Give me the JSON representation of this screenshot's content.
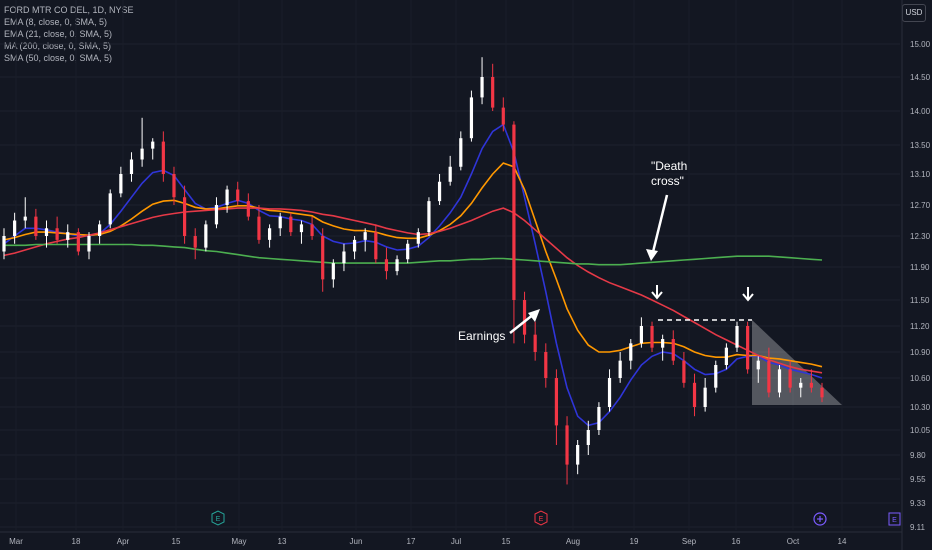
{
  "legend": {
    "symbol": "FORD MTR CO DEL, 1D, NYSE",
    "ema8": "EMA (8, close, 0, SMA, 5)",
    "ema21": "EMA (21, close, 0, SMA, 5)",
    "ma200": "MA (200, close, 0, SMA, 5)",
    "sma50": "SMA (50, close, 0, SMA, 5)"
  },
  "currency": "USD",
  "colors": {
    "background": "#131722",
    "up": "#ffffff",
    "down": "#f23645",
    "ema8": "#2f35d8",
    "ema21": "#ff9800",
    "ma200": "#4caf50",
    "sma50": "#e53947"
  },
  "event_icons": [
    "E",
    "E",
    "E"
  ],
  "annotations": {
    "earnings": "Earnings",
    "death_cross_line1": "\"Death",
    "death_cross_line2": "cross\""
  },
  "chart_data": {
    "type": "candlestick",
    "ylim": [
      9.11,
      15.25
    ],
    "yticks": [
      "15.00",
      "14.50",
      "14.00",
      "13.50",
      "13.10",
      "12.70",
      "12.30",
      "11.90",
      "11.50",
      "11.20",
      "10.90",
      "10.60",
      "10.30",
      "10.05",
      "9.80",
      "9.55",
      "9.33",
      "9.11"
    ],
    "xticks": [
      "Mar",
      "18",
      "Apr",
      "15",
      "May",
      "13",
      "Jun",
      "17",
      "Jul",
      "15",
      "Aug",
      "19",
      "Sep",
      "16",
      "Oct",
      "14"
    ],
    "candles": [
      [
        12.1,
        12.4,
        12.0,
        12.3
      ],
      [
        12.3,
        12.6,
        12.2,
        12.5
      ],
      [
        12.5,
        12.8,
        12.4,
        12.55
      ],
      [
        12.55,
        12.65,
        12.25,
        12.3
      ],
      [
        12.3,
        12.5,
        12.15,
        12.4
      ],
      [
        12.4,
        12.55,
        12.2,
        12.25
      ],
      [
        12.25,
        12.45,
        12.15,
        12.35
      ],
      [
        12.35,
        12.4,
        12.05,
        12.1
      ],
      [
        12.1,
        12.35,
        12.0,
        12.3
      ],
      [
        12.3,
        12.5,
        12.2,
        12.45
      ],
      [
        12.45,
        12.9,
        12.4,
        12.85
      ],
      [
        12.85,
        13.2,
        12.8,
        13.1
      ],
      [
        13.1,
        13.4,
        13.0,
        13.3
      ],
      [
        13.3,
        13.9,
        13.2,
        13.45
      ],
      [
        13.45,
        13.6,
        13.3,
        13.55
      ],
      [
        13.55,
        13.7,
        13.0,
        13.1
      ],
      [
        13.1,
        13.2,
        12.7,
        12.8
      ],
      [
        12.8,
        12.95,
        12.2,
        12.3
      ],
      [
        12.3,
        12.4,
        12.0,
        12.15
      ],
      [
        12.15,
        12.5,
        12.1,
        12.45
      ],
      [
        12.45,
        12.8,
        12.4,
        12.7
      ],
      [
        12.7,
        12.95,
        12.6,
        12.9
      ],
      [
        12.9,
        13.0,
        12.7,
        12.75
      ],
      [
        12.75,
        12.85,
        12.5,
        12.55
      ],
      [
        12.55,
        12.7,
        12.2,
        12.25
      ],
      [
        12.25,
        12.45,
        12.15,
        12.4
      ],
      [
        12.4,
        12.6,
        12.3,
        12.55
      ],
      [
        12.55,
        12.6,
        12.3,
        12.35
      ],
      [
        12.35,
        12.5,
        12.2,
        12.45
      ],
      [
        12.45,
        12.55,
        12.25,
        12.3
      ],
      [
        12.3,
        12.4,
        11.6,
        11.75
      ],
      [
        11.75,
        12.0,
        11.65,
        11.95
      ],
      [
        11.95,
        12.2,
        11.85,
        12.1
      ],
      [
        12.1,
        12.3,
        12.0,
        12.25
      ],
      [
        12.25,
        12.4,
        12.1,
        12.35
      ],
      [
        12.35,
        12.45,
        11.95,
        12.0
      ],
      [
        12.0,
        12.15,
        11.75,
        11.85
      ],
      [
        11.85,
        12.05,
        11.8,
        12.0
      ],
      [
        12.0,
        12.25,
        11.95,
        12.2
      ],
      [
        12.2,
        12.4,
        12.15,
        12.35
      ],
      [
        12.35,
        12.8,
        12.3,
        12.75
      ],
      [
        12.75,
        13.1,
        12.7,
        13.0
      ],
      [
        13.0,
        13.35,
        12.95,
        13.2
      ],
      [
        13.2,
        13.7,
        13.15,
        13.6
      ],
      [
        13.6,
        14.3,
        13.55,
        14.2
      ],
      [
        14.2,
        14.8,
        14.1,
        14.5
      ],
      [
        14.5,
        14.7,
        14.0,
        14.05
      ],
      [
        14.05,
        14.2,
        13.7,
        13.8
      ],
      [
        13.8,
        13.85,
        11.0,
        11.5
      ],
      [
        11.5,
        11.6,
        11.0,
        11.1
      ],
      [
        11.1,
        11.25,
        10.8,
        10.9
      ],
      [
        10.9,
        11.0,
        10.5,
        10.6
      ],
      [
        10.6,
        10.7,
        9.9,
        10.1
      ],
      [
        10.1,
        10.2,
        9.5,
        9.7
      ],
      [
        9.7,
        9.95,
        9.6,
        9.9
      ],
      [
        9.9,
        10.15,
        9.8,
        10.05
      ],
      [
        10.05,
        10.35,
        10.0,
        10.3
      ],
      [
        10.3,
        10.7,
        10.25,
        10.6
      ],
      [
        10.6,
        10.9,
        10.55,
        10.8
      ],
      [
        10.8,
        11.05,
        10.7,
        11.0
      ],
      [
        11.0,
        11.3,
        10.95,
        11.2
      ],
      [
        11.2,
        11.25,
        10.9,
        10.95
      ],
      [
        10.95,
        11.1,
        10.8,
        11.05
      ],
      [
        11.05,
        11.15,
        10.75,
        10.8
      ],
      [
        10.8,
        10.9,
        10.5,
        10.55
      ],
      [
        10.55,
        10.65,
        10.2,
        10.3
      ],
      [
        10.3,
        10.6,
        10.25,
        10.5
      ],
      [
        10.5,
        10.8,
        10.45,
        10.75
      ],
      [
        10.75,
        11.0,
        10.7,
        10.95
      ],
      [
        10.95,
        11.25,
        10.9,
        11.2
      ],
      [
        11.2,
        11.25,
        10.65,
        10.7
      ],
      [
        10.7,
        10.85,
        10.55,
        10.8
      ],
      [
        10.8,
        10.95,
        10.4,
        10.45
      ],
      [
        10.45,
        10.75,
        10.4,
        10.7
      ],
      [
        10.7,
        10.8,
        10.45,
        10.5
      ],
      [
        10.5,
        10.6,
        10.4,
        10.55
      ],
      [
        10.55,
        10.7,
        10.45,
        10.5
      ],
      [
        10.5,
        10.55,
        10.35,
        10.4
      ]
    ],
    "series": [
      {
        "name": "EMA (8, close, 0, SMA, 5)",
        "values": [
          12.2,
          12.3,
          12.4,
          12.4,
          12.38,
          12.35,
          12.33,
          12.3,
          12.3,
          12.33,
          12.45,
          12.62,
          12.8,
          12.98,
          13.12,
          13.15,
          13.08,
          12.9,
          12.72,
          12.65,
          12.67,
          12.72,
          12.76,
          12.72,
          12.63,
          12.56,
          12.55,
          12.52,
          12.5,
          12.45,
          12.3,
          12.23,
          12.2,
          12.21,
          12.24,
          12.22,
          12.16,
          12.12,
          12.13,
          12.17,
          12.28,
          12.43,
          12.6,
          12.8,
          13.1,
          13.45,
          13.7,
          13.8,
          13.4,
          12.8,
          12.2,
          11.6,
          11.0,
          10.5,
          10.2,
          10.1,
          10.13,
          10.25,
          10.4,
          10.58,
          10.75,
          10.85,
          10.9,
          10.88,
          10.8,
          10.7,
          10.64,
          10.65,
          10.7,
          10.82,
          10.85,
          10.85,
          10.78,
          10.75,
          10.7,
          10.67,
          10.64,
          10.6
        ]
      },
      {
        "name": "EMA (21, close, 0, SMA, 5)",
        "values": [
          12.25,
          12.28,
          12.32,
          12.35,
          12.35,
          12.34,
          12.33,
          12.32,
          12.31,
          12.32,
          12.36,
          12.43,
          12.52,
          12.62,
          12.71,
          12.75,
          12.76,
          12.72,
          12.67,
          12.65,
          12.65,
          12.67,
          12.69,
          12.69,
          12.66,
          12.63,
          12.62,
          12.6,
          12.58,
          12.56,
          12.48,
          12.43,
          12.39,
          12.37,
          12.37,
          12.35,
          12.31,
          12.28,
          12.27,
          12.27,
          12.31,
          12.37,
          12.45,
          12.56,
          12.72,
          12.92,
          13.1,
          13.25,
          13.2,
          12.9,
          12.5,
          12.1,
          11.75,
          11.4,
          11.15,
          10.98,
          10.9,
          10.9,
          10.92,
          10.96,
          11.0,
          11.01,
          11.01,
          11.0,
          10.96,
          10.9,
          10.86,
          10.84,
          10.84,
          10.87,
          10.86,
          10.86,
          10.83,
          10.82,
          10.8,
          10.78,
          10.76,
          10.73
        ]
      },
      {
        "name": "SMA (50, close, 0, SMA, 5)",
        "values": [
          12.05,
          12.08,
          12.12,
          12.16,
          12.2,
          12.23,
          12.26,
          12.28,
          12.31,
          12.34,
          12.38,
          12.42,
          12.46,
          12.5,
          12.54,
          12.57,
          12.59,
          12.61,
          12.62,
          12.63,
          12.64,
          12.65,
          12.66,
          12.66,
          12.66,
          12.65,
          12.65,
          12.64,
          12.63,
          12.61,
          12.58,
          12.56,
          12.53,
          12.5,
          12.47,
          12.44,
          12.4,
          12.37,
          12.34,
          12.32,
          12.33,
          12.36,
          12.4,
          12.45,
          12.5,
          12.56,
          12.62,
          12.66,
          12.6,
          12.5,
          12.38,
          12.26,
          12.14,
          12.02,
          11.92,
          11.84,
          11.77,
          11.71,
          11.66,
          11.61,
          11.56,
          11.5,
          11.44,
          11.38,
          11.31,
          11.24,
          11.17,
          11.1,
          11.04,
          10.98,
          10.92,
          10.86,
          10.81,
          10.77,
          10.73,
          10.7,
          10.68,
          10.66
        ]
      },
      {
        "name": "MA (200, close, 0, SMA, 5)",
        "values": [
          12.18,
          12.18,
          12.18,
          12.19,
          12.19,
          12.19,
          12.19,
          12.19,
          12.19,
          12.19,
          12.19,
          12.19,
          12.19,
          12.18,
          12.18,
          12.17,
          12.16,
          12.15,
          12.13,
          12.11,
          12.1,
          12.08,
          12.06,
          12.04,
          12.02,
          12.01,
          12.0,
          11.99,
          11.98,
          11.97,
          11.96,
          11.95,
          11.95,
          11.95,
          11.95,
          11.95,
          11.95,
          11.95,
          11.95,
          11.96,
          11.97,
          11.98,
          11.98,
          11.99,
          12.0,
          12.0,
          12.01,
          12.01,
          12.0,
          11.99,
          11.98,
          11.97,
          11.96,
          11.95,
          11.94,
          11.94,
          11.93,
          11.93,
          11.93,
          11.94,
          11.95,
          11.96,
          11.97,
          11.98,
          11.99,
          12.0,
          12.01,
          12.02,
          12.03,
          12.04,
          12.04,
          12.04,
          12.04,
          12.03,
          12.02,
          12.01,
          12.0,
          11.99
        ]
      }
    ]
  }
}
